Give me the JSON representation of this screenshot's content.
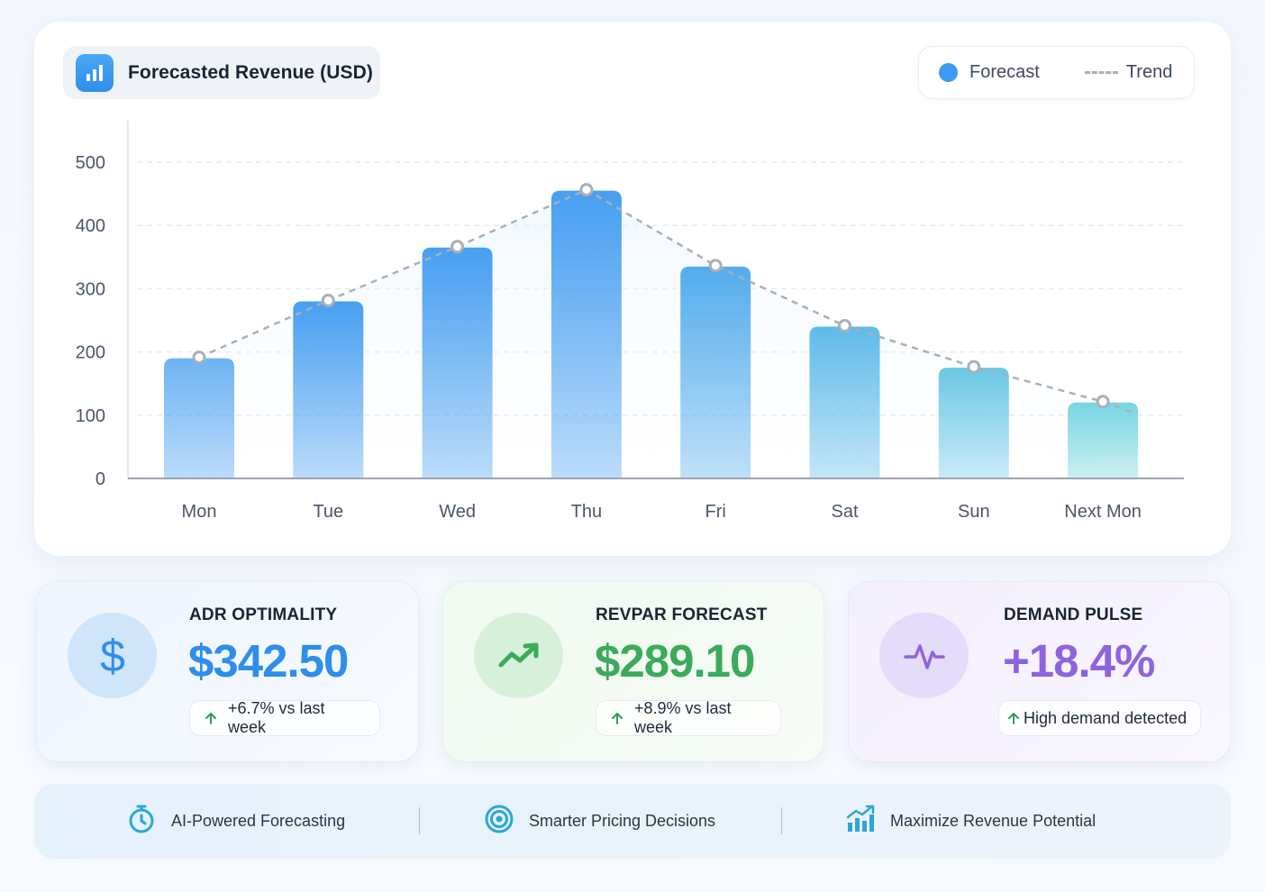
{
  "chart_header": {
    "title": "Forecasted Revenue (USD)",
    "icon": "bar-chart-icon"
  },
  "legend": {
    "forecast": "Forecast",
    "trend": "Trend"
  },
  "chart_data": {
    "type": "bar",
    "title": "Forecasted Revenue (USD)",
    "categories": [
      "Mon",
      "Tue",
      "Wed",
      "Thu",
      "Fri",
      "Sat",
      "Sun",
      "Next Mon"
    ],
    "series": [
      {
        "name": "Forecast",
        "type": "bar",
        "values": [
          190,
          280,
          365,
          455,
          335,
          240,
          175,
          120
        ]
      },
      {
        "name": "Trend",
        "type": "line",
        "style": "dashed",
        "values": [
          190,
          280,
          365,
          455,
          335,
          240,
          175,
          120
        ]
      }
    ],
    "ylim": [
      0,
      500
    ],
    "yticks": [
      0,
      100,
      200,
      300,
      400,
      500
    ],
    "grid": true,
    "legend_position": "top-right",
    "colors": {
      "bar_top": "#3d9af0",
      "bar_end": "#6fd3df",
      "trend": "#a9afb8"
    }
  },
  "kpis": [
    {
      "title": "ADR OPTIMALITY",
      "value": "$342.50",
      "badge": "+6.7% vs last week",
      "icon": "dollar-icon",
      "color": "#2f8eea"
    },
    {
      "title": "REVPAR FORECAST",
      "value": "$289.10",
      "badge": "+8.9% vs last week",
      "icon": "trending-up-icon",
      "color": "#3aab5b"
    },
    {
      "title": "DEMAND PULSE",
      "value": "+18.4%",
      "badge": "High demand detected",
      "icon": "pulse-icon",
      "color": "#8e63e0"
    }
  ],
  "footer": [
    {
      "label": "AI-Powered Forecasting",
      "icon": "stopwatch-icon"
    },
    {
      "label": "Smarter Pricing Decisions",
      "icon": "target-icon"
    },
    {
      "label": "Maximize Revenue Potential",
      "icon": "growth-chart-icon"
    }
  ]
}
